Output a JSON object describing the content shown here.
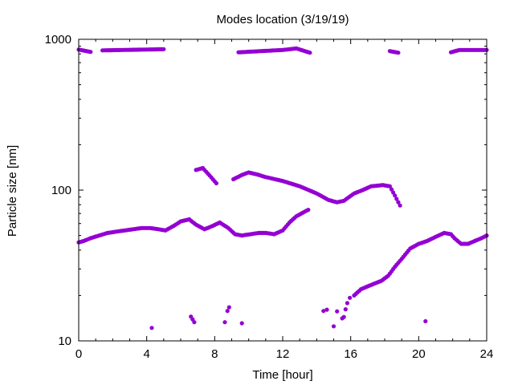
{
  "chart_data": {
    "type": "scatter",
    "title": "Modes location (3/19/19)",
    "xlabel": "Time [hour]",
    "ylabel": "Particle size [nm]",
    "xlim": [
      0,
      24
    ],
    "ylim": [
      10,
      1000
    ],
    "yscale": "log",
    "xticks": [
      0,
      4,
      8,
      12,
      16,
      20,
      24
    ],
    "xtick_labels": [
      "0",
      "4",
      "8",
      "12",
      "16",
      "20",
      "24"
    ],
    "yticks": [
      10,
      100,
      1000
    ],
    "ytick_labels": [
      "10",
      "100",
      "1000"
    ],
    "grid": false,
    "legend": "none",
    "marker_color": "#9400d3",
    "segments": [
      {
        "x": [
          0.0,
          0.7
        ],
        "y": [
          855,
          825
        ]
      },
      {
        "x": [
          1.4,
          5.0
        ],
        "y": [
          845,
          860
        ]
      },
      {
        "x": [
          9.4,
          12.0,
          12.8,
          13.6
        ],
        "y": [
          820,
          850,
          870,
          815
        ]
      },
      {
        "x": [
          18.3,
          18.8
        ],
        "y": [
          835,
          815
        ]
      },
      {
        "x": [
          21.9,
          22.4,
          24.0
        ],
        "y": [
          820,
          850,
          850
        ]
      },
      {
        "x": [
          6.9,
          7.3,
          7.7,
          8.1
        ],
        "y": [
          136,
          140,
          125,
          111
        ]
      },
      {
        "x": [
          9.1,
          9.6,
          10.0,
          10.5,
          11.0,
          12.0,
          13.0,
          14.0,
          14.7,
          15.2,
          15.6,
          16.2,
          16.7,
          17.2,
          17.9,
          18.3,
          18.6,
          18.9
        ],
        "y": [
          118,
          126,
          131,
          127,
          122,
          115,
          106,
          95,
          86,
          83,
          85,
          95,
          100,
          106,
          108,
          106,
          92,
          79
        ]
      },
      {
        "x": [
          0.0,
          0.3,
          0.7,
          1.2,
          1.7,
          2.2,
          2.7,
          3.2,
          3.7,
          4.2,
          4.7,
          5.1,
          5.6,
          6.0,
          6.5,
          6.9,
          7.4,
          7.9,
          8.3,
          8.8,
          9.2,
          9.6,
          10.1,
          10.6,
          11.0,
          11.5,
          12.0,
          12.4,
          12.8,
          13.2,
          13.5
        ],
        "y": [
          45,
          46,
          48,
          50,
          52,
          53,
          54,
          55,
          56,
          56,
          55,
          54,
          58,
          62,
          64,
          59,
          55,
          58,
          61,
          56,
          51,
          50,
          51,
          52,
          52,
          51,
          54,
          61,
          67,
          71,
          74
        ]
      },
      {
        "x": [
          16.2,
          16.6,
          17.0,
          17.4,
          17.8,
          18.2,
          18.6,
          19.0,
          19.5,
          20.0,
          20.5,
          21.0,
          21.5,
          21.9,
          22.1,
          22.5,
          22.9,
          23.3,
          23.7,
          24.0
        ],
        "y": [
          20,
          22,
          23,
          24,
          25,
          27,
          31,
          35,
          41,
          44,
          46,
          49,
          52,
          51,
          48,
          44,
          44,
          46,
          48,
          50
        ]
      }
    ],
    "points": [
      {
        "x": 4.3,
        "y": 12.2
      },
      {
        "x": 6.6,
        "y": 14.5
      },
      {
        "x": 6.7,
        "y": 13.9
      },
      {
        "x": 6.8,
        "y": 13.3
      },
      {
        "x": 8.6,
        "y": 13.3
      },
      {
        "x": 8.75,
        "y": 15.8
      },
      {
        "x": 8.85,
        "y": 16.7
      },
      {
        "x": 9.6,
        "y": 13.1
      },
      {
        "x": 14.4,
        "y": 15.8
      },
      {
        "x": 14.6,
        "y": 16.1
      },
      {
        "x": 15.0,
        "y": 12.5
      },
      {
        "x": 15.2,
        "y": 15.7
      },
      {
        "x": 15.5,
        "y": 14.1
      },
      {
        "x": 15.6,
        "y": 14.4
      },
      {
        "x": 15.7,
        "y": 16.2
      },
      {
        "x": 15.8,
        "y": 17.8
      },
      {
        "x": 15.95,
        "y": 19.3
      },
      {
        "x": 20.4,
        "y": 13.5
      }
    ]
  }
}
